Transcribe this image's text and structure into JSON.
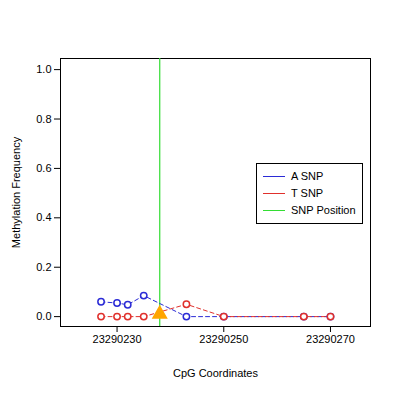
{
  "chart_data": {
    "type": "line",
    "x_label": "CpG Coordinates",
    "y_label": "Methylation Frequency",
    "x": [
      23290227,
      23290230,
      23290232,
      23290235,
      23290243,
      23290250,
      23290265,
      23290270
    ],
    "series": [
      {
        "name": "A SNP",
        "color": "#2b2bd6",
        "marker": "circle",
        "line_style": "dashed",
        "values": [
          0.06,
          0.055,
          0.048,
          0.085,
          0,
          0,
          0,
          0
        ]
      },
      {
        "name": "T SNP",
        "color": "#e0302c",
        "marker": "circle",
        "line_style": "dashed",
        "values": [
          0,
          0,
          0,
          0,
          0.05,
          0,
          0,
          0
        ]
      }
    ],
    "snp": {
      "name": "SNP Position",
      "x": 23290238,
      "color": "#33dd33"
    },
    "snp_marker": {
      "value": 0.01,
      "color": "#ffa500",
      "marker": "triangle"
    },
    "xlim": [
      23290219.4,
      23290277.5
    ],
    "xticks": [
      23290230,
      23290250,
      23290270
    ],
    "ylim": [
      -0.04,
      1.045
    ],
    "yticks": [
      {
        "value": 0,
        "label": "0.0"
      },
      {
        "value": 0.2,
        "label": "0.2"
      },
      {
        "value": 0.4,
        "label": "0.4"
      },
      {
        "value": 0.6,
        "label": "0.6"
      },
      {
        "value": 0.8,
        "label": "0.8"
      },
      {
        "value": 1.0,
        "label": "1.0"
      }
    ],
    "legend": "right",
    "grid": false
  }
}
